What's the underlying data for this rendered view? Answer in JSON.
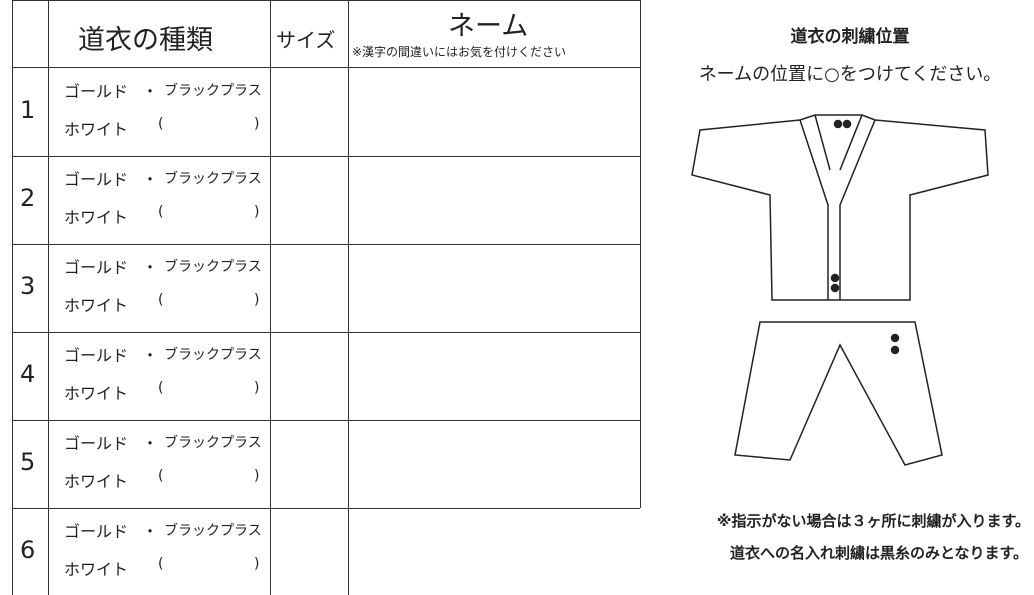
{
  "table": {
    "headers": {
      "type": "道衣の種類",
      "size": "サイズ",
      "name": "ネーム",
      "name_note": "※漢字の間違いにはお気を付けください"
    },
    "rows": [
      {
        "number": "1",
        "gold": "ゴールド",
        "dot": "・",
        "black": "ブラックプラス",
        "white": "ホワイト",
        "open": "(",
        "close": ")"
      },
      {
        "number": "2",
        "gold": "ゴールド",
        "dot": "・",
        "black": "ブラックプラス",
        "white": "ホワイト",
        "open": "(",
        "close": ")"
      },
      {
        "number": "3",
        "gold": "ゴールド",
        "dot": "・",
        "black": "ブラックプラス",
        "white": "ホワイト",
        "open": "(",
        "close": ")"
      },
      {
        "number": "4",
        "gold": "ゴールド",
        "dot": "・",
        "black": "ブラックプラス",
        "white": "ホワイト",
        "open": "(",
        "close": ")"
      },
      {
        "number": "5",
        "gold": "ゴールド",
        "dot": "・",
        "black": "ブラックプラス",
        "white": "ホワイト",
        "open": "(",
        "close": ")"
      },
      {
        "number": "6",
        "gold": "ゴールド",
        "dot": "・",
        "black": "ブラックプラス",
        "white": "ホワイト",
        "open": "(",
        "close": ")"
      }
    ]
  },
  "panel": {
    "title": "道衣の刺繍位置",
    "instruction": "ネームの位置に○をつけてください。",
    "note1": "※指示がない場合は３ヶ所に刺繍が入ります。",
    "note2": "道衣への名入れ刺繍は黒糸のみとなります。"
  }
}
